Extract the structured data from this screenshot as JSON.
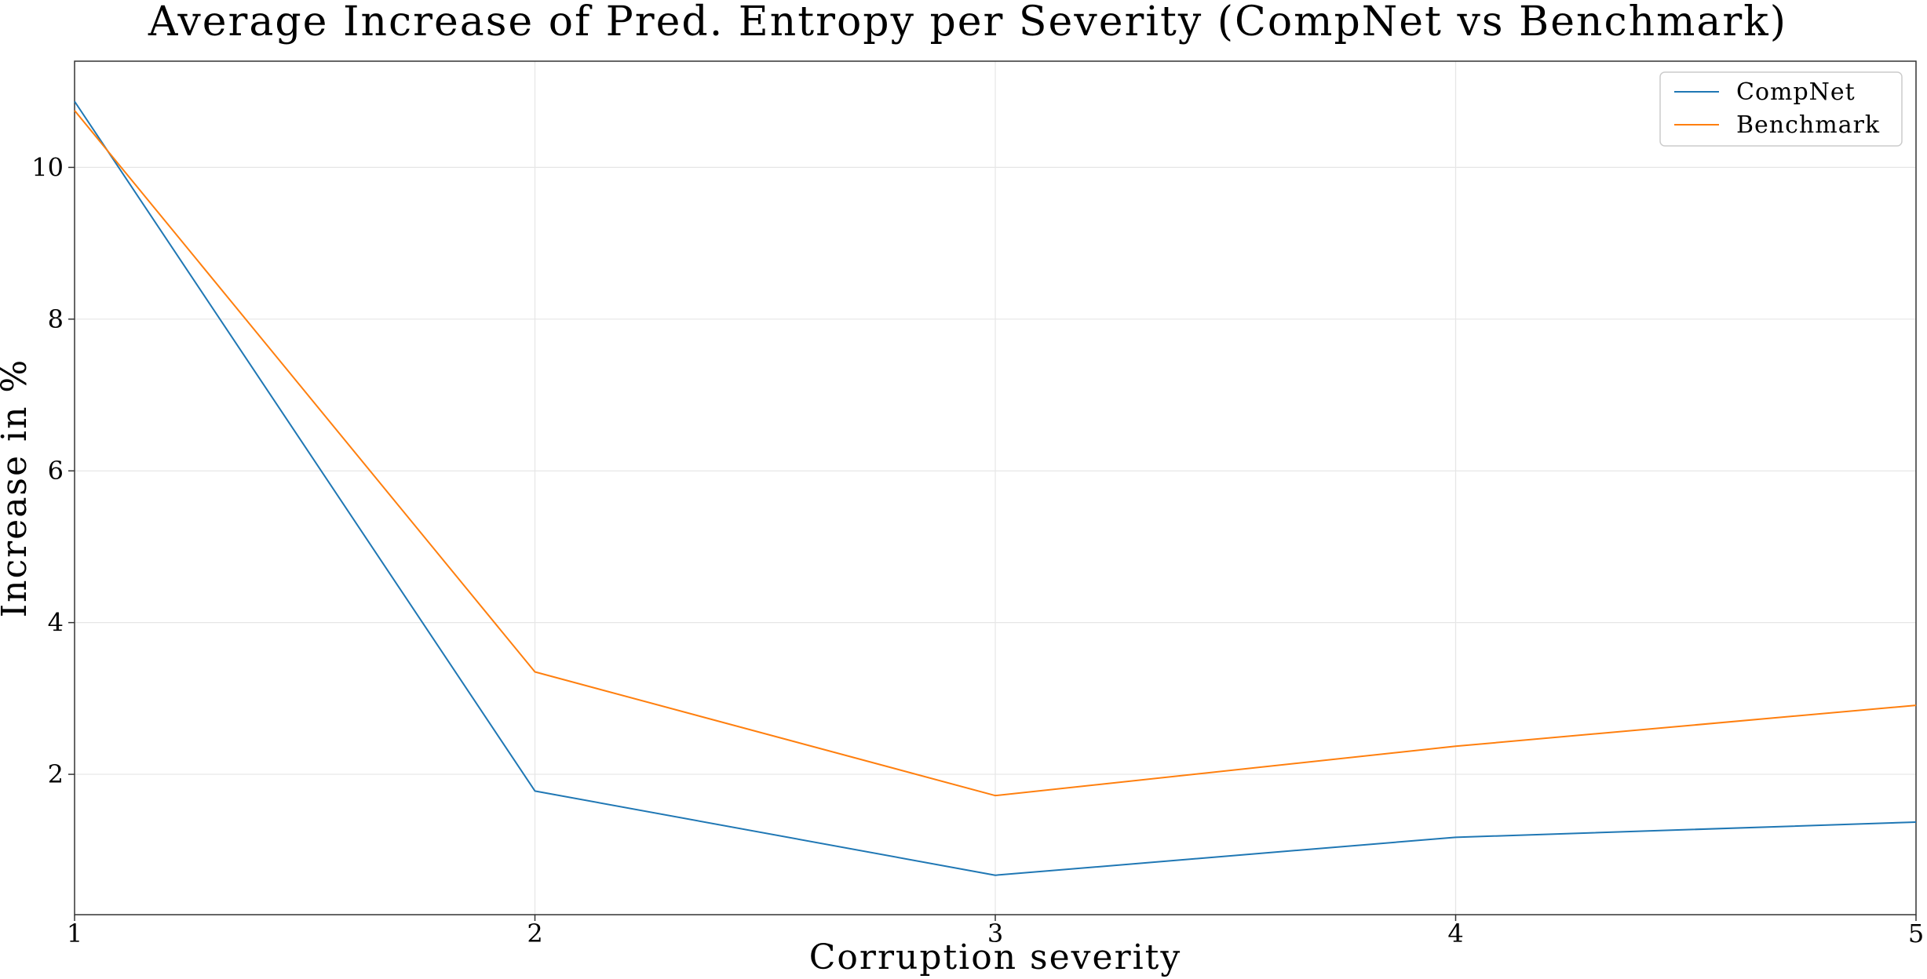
{
  "chart_data": {
    "type": "line",
    "title": "Average Increase of Pred. Entropy per Severity (CompNet vs Benchmark)",
    "xlabel": "Corruption severity",
    "ylabel": "Increase in %",
    "x": [
      1,
      2,
      3,
      4,
      5
    ],
    "x_ticks": [
      "1",
      "2",
      "3",
      "4",
      "5"
    ],
    "xlim": [
      1,
      5
    ],
    "y_ticks": [
      "2",
      "4",
      "6",
      "8",
      "10"
    ],
    "y_tick_values": [
      2,
      4,
      6,
      8,
      10
    ],
    "ylim": [
      0.15,
      11.4
    ],
    "grid": true,
    "legend_position": "top-right",
    "series": [
      {
        "name": "CompNet",
        "color": "#1f77b4",
        "values": [
          10.87,
          1.78,
          0.67,
          1.17,
          1.37
        ]
      },
      {
        "name": "Benchmark",
        "color": "#ff7f0e",
        "values": [
          10.75,
          3.35,
          1.72,
          2.37,
          2.91
        ]
      }
    ]
  }
}
